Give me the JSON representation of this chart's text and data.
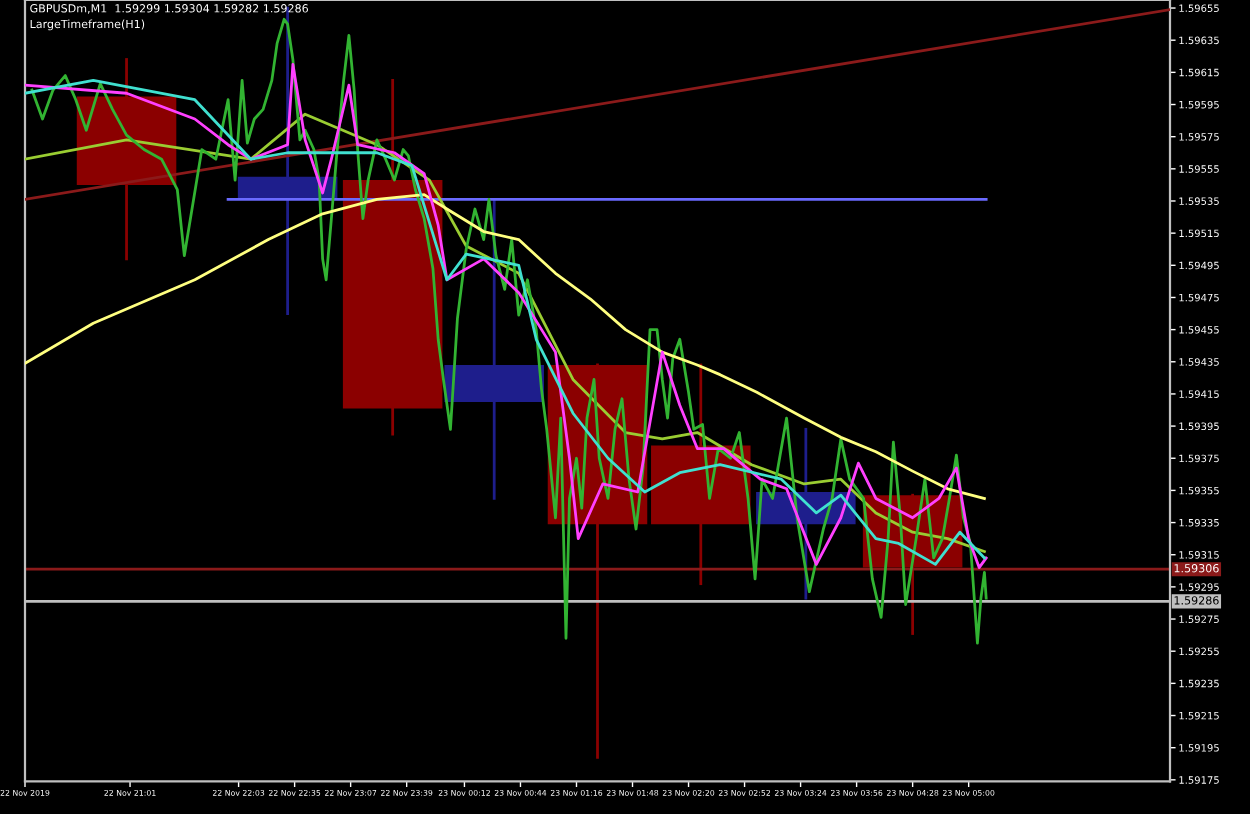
{
  "chart_data": {
    "type": "candlestick",
    "title": "GBPUSDm,M1  1.59299 1.59304 1.59282 1.59286",
    "subtitle": "LargeTimeframe(H1)",
    "xlim": [
      "2019-11-22T20:01",
      "2019-11-23T06:55"
    ],
    "ylim": [
      1.59174,
      1.5966
    ],
    "xticks": [
      {
        "value": "2019-11-22T20:01",
        "label": "22 Nov 2019"
      },
      {
        "value": "2019-11-22T21:01",
        "label": "22 Nov 21:01"
      },
      {
        "value": "2019-11-22T22:03",
        "label": "22 Nov 22:03"
      },
      {
        "value": "2019-11-22T22:35",
        "label": "22 Nov 22:35"
      },
      {
        "value": "2019-11-22T23:07",
        "label": "22 Nov 23:07"
      },
      {
        "value": "2019-11-22T23:39",
        "label": "22 Nov 23:39"
      },
      {
        "value": "2019-11-23T00:12",
        "label": "23 Nov 00:12"
      },
      {
        "value": "2019-11-23T00:44",
        "label": "23 Nov 00:44"
      },
      {
        "value": "2019-11-23T01:16",
        "label": "23 Nov 01:16"
      },
      {
        "value": "2019-11-23T01:48",
        "label": "23 Nov 01:48"
      },
      {
        "value": "2019-11-23T02:20",
        "label": "23 Nov 02:20"
      },
      {
        "value": "2019-11-23T02:52",
        "label": "23 Nov 02:52"
      },
      {
        "value": "2019-11-23T03:24",
        "label": "23 Nov 03:24"
      },
      {
        "value": "2019-11-23T03:56",
        "label": "23 Nov 03:56"
      },
      {
        "value": "2019-11-23T04:28",
        "label": "23 Nov 04:28"
      },
      {
        "value": "2019-11-23T05:00",
        "label": "23 Nov 05:00"
      }
    ],
    "yticks": [
      1.59655,
      1.59635,
      1.59615,
      1.59595,
      1.59575,
      1.59555,
      1.59535,
      1.59515,
      1.59495,
      1.59475,
      1.59455,
      1.59435,
      1.59415,
      1.59395,
      1.59375,
      1.59355,
      1.59335,
      1.59315,
      1.59295,
      1.59275,
      1.59255,
      1.59235,
      1.59215,
      1.59195,
      1.59175
    ],
    "grid": false,
    "legend": false,
    "marker": "none",
    "line_style": "solid",
    "ref_lines": [
      {
        "axis": "y",
        "value": 1.59306,
        "label": "1.59306",
        "color": "#8b1a1a"
      },
      {
        "axis": "y",
        "value": 1.59286,
        "label": "1.59286",
        "color": "#c0c0c0"
      }
    ],
    "series": [
      {
        "x": [
          "2019-11-22T20:59",
          "2019-11-22T22:31",
          "2019-11-22T23:31",
          "2019-11-23T00:29",
          "2019-11-23T01:28",
          "2019-11-23T02:27",
          "2019-11-23T03:27",
          "2019-11-23T04:28"
        ],
        "colors": [
          "#8b0000",
          "#1e1e8c",
          "#8b0000",
          "#1e1e8c",
          "#8b0000",
          "#8b0000",
          "#1e1e8c",
          "#8b0000"
        ],
        "ohlc": [
          [
            1.596,
            1.59623,
            1.59499,
            1.59545
          ],
          [
            1.59536,
            1.59655,
            1.59465,
            1.5955
          ],
          [
            1.59548,
            1.5961,
            1.5939,
            1.59406
          ],
          [
            1.5941,
            1.59536,
            1.5935,
            1.59433
          ],
          [
            1.59433,
            1.59433,
            1.59189,
            1.59334
          ],
          [
            1.59383,
            1.59433,
            1.59297,
            1.59334
          ],
          [
            1.59334,
            1.59393,
            1.59288,
            1.59354
          ],
          [
            1.59352,
            1.59352,
            1.59266,
            1.59307
          ]
        ]
      },
      {
        "type": "line",
        "color": "#8b1a1a",
        "x": [
          "2019-11-22T20:01",
          "2019-11-23T06:55"
        ],
        "values": [
          1.59536,
          1.59654
        ]
      },
      {
        "type": "line",
        "color": "#6a6aff",
        "x": [
          "2019-11-22T21:57",
          "2019-11-23T05:10"
        ],
        "values": [
          1.59536,
          1.59536
        ]
      },
      {
        "type": "line",
        "color": "#9acd32",
        "x": [
          "2019-11-22T20:01",
          "2019-11-22T20:59",
          "2019-11-22T22:10",
          "2019-11-22T22:41",
          "2019-11-22T23:22",
          "2019-11-22T23:52",
          "2019-11-23T00:13",
          "2019-11-23T00:43",
          "2019-11-23T01:14",
          "2019-11-23T01:44",
          "2019-11-23T02:05",
          "2019-11-23T02:25",
          "2019-11-23T02:56",
          "2019-11-23T03:26",
          "2019-11-23T03:47",
          "2019-11-23T04:07",
          "2019-11-23T04:28",
          "2019-11-23T04:48",
          "2019-11-23T05:09"
        ],
        "values": [
          1.59561,
          1.59573,
          1.59561,
          1.59589,
          1.5957,
          1.59548,
          1.59507,
          1.5949,
          1.59424,
          1.59391,
          1.59387,
          1.59391,
          1.59371,
          1.59359,
          1.59362,
          1.59341,
          1.59329,
          1.59325,
          1.59317
        ]
      },
      {
        "type": "line",
        "color": "#32b432",
        "x": [
          "2019-11-22T20:05",
          "2019-11-22T20:11",
          "2019-11-22T20:17",
          "2019-11-22T20:24",
          "2019-11-22T20:30",
          "2019-11-22T20:36",
          "2019-11-22T20:44",
          "2019-11-22T20:51",
          "2019-11-22T20:59",
          "2019-11-22T21:09",
          "2019-11-22T21:19",
          "2019-11-22T21:28",
          "2019-11-22T21:32",
          "2019-11-22T21:42",
          "2019-11-22T21:50",
          "2019-11-22T21:57",
          "2019-11-22T22:01",
          "2019-11-22T22:05",
          "2019-11-22T22:08",
          "2019-11-22T22:12",
          "2019-11-22T22:17",
          "2019-11-22T22:22",
          "2019-11-22T22:25",
          "2019-11-22T22:29",
          "2019-11-22T22:31",
          "2019-11-22T22:34",
          "2019-11-22T22:38",
          "2019-11-22T22:41",
          "2019-11-22T22:46",
          "2019-11-22T22:49",
          "2019-11-22T22:51",
          "2019-11-22T22:53",
          "2019-11-22T22:56",
          "2019-11-22T22:59",
          "2019-11-22T23:03",
          "2019-11-22T23:06",
          "2019-11-22T23:09",
          "2019-11-22T23:11",
          "2019-11-22T23:14",
          "2019-11-22T23:17",
          "2019-11-22T23:22",
          "2019-11-22T23:27",
          "2019-11-22T23:32",
          "2019-11-22T23:37",
          "2019-11-22T23:40",
          "2019-11-22T23:44",
          "2019-11-22T23:49",
          "2019-11-22T23:54",
          "2019-11-22T23:57",
          "2019-11-23T00:00",
          "2019-11-23T00:04",
          "2019-11-23T00:08",
          "2019-11-23T00:13",
          "2019-11-23T00:18",
          "2019-11-23T00:23",
          "2019-11-23T00:26",
          "2019-11-23T00:30",
          "2019-11-23T00:35",
          "2019-11-23T00:39",
          "2019-11-23T00:43",
          "2019-11-23T00:48",
          "2019-11-23T00:53",
          "2019-11-23T00:56",
          "2019-11-23T00:59",
          "2019-11-23T01:04",
          "2019-11-23T01:07",
          "2019-11-23T01:10",
          "2019-11-23T01:12",
          "2019-11-23T01:16",
          "2019-11-23T01:19",
          "2019-11-23T01:22",
          "2019-11-23T01:26",
          "2019-11-23T01:29",
          "2019-11-23T01:34",
          "2019-11-23T01:38",
          "2019-11-23T01:42",
          "2019-11-23T01:46",
          "2019-11-23T01:50",
          "2019-11-23T01:54",
          "2019-11-23T01:58",
          "2019-11-23T02:02",
          "2019-11-23T02:05",
          "2019-11-23T02:08",
          "2019-11-23T02:11",
          "2019-11-23T02:15",
          "2019-11-23T02:20",
          "2019-11-23T02:23",
          "2019-11-23T02:28",
          "2019-11-23T02:32",
          "2019-11-23T02:37",
          "2019-11-23T02:44",
          "2019-11-23T02:49",
          "2019-11-23T02:54",
          "2019-11-23T02:58",
          "2019-11-23T03:02",
          "2019-11-23T03:08",
          "2019-11-23T03:16",
          "2019-11-23T03:22",
          "2019-11-23T03:29",
          "2019-11-23T03:37",
          "2019-11-23T03:42",
          "2019-11-23T03:47",
          "2019-11-23T03:52",
          "2019-11-23T04:00",
          "2019-11-23T04:05",
          "2019-11-23T04:10",
          "2019-11-23T04:14",
          "2019-11-23T04:17",
          "2019-11-23T04:21",
          "2019-11-23T04:24",
          "2019-11-23T04:30",
          "2019-11-23T04:35",
          "2019-11-23T04:40",
          "2019-11-23T04:45",
          "2019-11-23T04:49",
          "2019-11-23T04:53",
          "2019-11-23T04:57",
          "2019-11-23T05:01",
          "2019-11-23T05:05",
          "2019-11-23T05:07",
          "2019-11-23T05:09",
          "2019-11-23T05:10"
        ],
        "values": [
          1.59604,
          1.59586,
          1.59604,
          1.59613,
          1.59598,
          1.59579,
          1.59608,
          1.59592,
          1.59576,
          1.59567,
          1.59561,
          1.59542,
          1.59501,
          1.59567,
          1.59561,
          1.59598,
          1.59548,
          1.5961,
          1.59571,
          1.59586,
          1.59592,
          1.5961,
          1.59633,
          1.59648,
          1.59645,
          1.59623,
          1.59573,
          1.59579,
          1.59567,
          1.59548,
          1.59499,
          1.59486,
          1.59524,
          1.59563,
          1.5961,
          1.59638,
          1.59604,
          1.59567,
          1.59524,
          1.59548,
          1.59573,
          1.59561,
          1.59548,
          1.59567,
          1.59563,
          1.59542,
          1.59524,
          1.59493,
          1.59449,
          1.59424,
          1.59393,
          1.59462,
          1.59505,
          1.5953,
          1.59511,
          1.59536,
          1.59501,
          1.5948,
          1.59511,
          1.59464,
          1.59486,
          1.59455,
          1.59418,
          1.59393,
          1.59338,
          1.594,
          1.59263,
          1.5935,
          1.59375,
          1.59344,
          1.594,
          1.59424,
          1.59375,
          1.5935,
          1.59393,
          1.59412,
          1.59362,
          1.59331,
          1.59369,
          1.59455,
          1.59455,
          1.59424,
          1.594,
          1.59437,
          1.59449,
          1.59416,
          1.59393,
          1.59396,
          1.5935,
          1.59381,
          1.59375,
          1.59391,
          1.5935,
          1.593,
          1.59362,
          1.5935,
          1.594,
          1.59338,
          1.59292,
          1.59331,
          1.5935,
          1.59387,
          1.59362,
          1.5935,
          1.593,
          1.59276,
          1.59325,
          1.59385,
          1.59338,
          1.59284,
          1.59325,
          1.59362,
          1.59313,
          1.59325,
          1.5935,
          1.59377,
          1.59338,
          1.59322,
          1.5926,
          1.59288,
          1.59304,
          1.59288
        ]
      },
      {
        "type": "line",
        "color": "#ffff80",
        "x": [
          "2019-11-22T20:01",
          "2019-11-22T20:40",
          "2019-11-22T21:38",
          "2019-11-22T22:20",
          "2019-11-22T22:51",
          "2019-11-22T23:22",
          "2019-11-22T23:49",
          "2019-11-23T00:02",
          "2019-11-23T00:23",
          "2019-11-23T00:43",
          "2019-11-23T01:04",
          "2019-11-23T01:24",
          "2019-11-23T01:44",
          "2019-11-23T02:05",
          "2019-11-23T02:25",
          "2019-11-23T02:38",
          "2019-11-23T02:59",
          "2019-11-23T03:26",
          "2019-11-23T03:47",
          "2019-11-23T04:07",
          "2019-11-23T04:28",
          "2019-11-23T04:48",
          "2019-11-23T05:09"
        ],
        "values": [
          1.59434,
          1.59459,
          1.59486,
          1.59511,
          1.59527,
          1.59536,
          1.59539,
          1.5953,
          1.59516,
          1.59511,
          1.5949,
          1.59474,
          1.59455,
          1.59441,
          1.59433,
          1.59427,
          1.59416,
          1.594,
          1.59388,
          1.59379,
          1.59367,
          1.59356,
          1.5935
        ]
      },
      {
        "type": "line",
        "color": "#ff40ff",
        "x": [
          "2019-11-22T20:01",
          "2019-11-22T20:59",
          "2019-11-22T21:38",
          "2019-11-22T21:57",
          "2019-11-22T22:10",
          "2019-11-22T22:31",
          "2019-11-22T22:34",
          "2019-11-22T22:41",
          "2019-11-22T22:51",
          "2019-11-22T22:56",
          "2019-11-22T23:06",
          "2019-11-22T23:11",
          "2019-11-22T23:32",
          "2019-11-22T23:49",
          "2019-11-22T23:57",
          "2019-11-23T00:02",
          "2019-11-23T00:23",
          "2019-11-23T00:43",
          "2019-11-23T01:04",
          "2019-11-23T01:12",
          "2019-11-23T01:17",
          "2019-11-23T01:31",
          "2019-11-23T01:51",
          "2019-11-23T02:05",
          "2019-11-23T02:15",
          "2019-11-23T02:25",
          "2019-11-23T02:40",
          "2019-11-23T03:01",
          "2019-11-23T03:16",
          "2019-11-23T03:33",
          "2019-11-23T03:47",
          "2019-11-23T03:57",
          "2019-11-23T04:07",
          "2019-11-23T04:28",
          "2019-11-23T04:43",
          "2019-11-23T04:53",
          "2019-11-23T05:00",
          "2019-11-23T05:06",
          "2019-11-23T05:10"
        ],
        "values": [
          1.59607,
          1.59602,
          1.59586,
          1.5957,
          1.59561,
          1.5957,
          1.5962,
          1.59573,
          1.5954,
          1.59561,
          1.59607,
          1.5957,
          1.59565,
          1.59552,
          1.5952,
          1.59486,
          1.59499,
          1.59478,
          1.59441,
          1.59375,
          1.59325,
          1.59359,
          1.59354,
          1.59441,
          1.59408,
          1.59381,
          1.59381,
          1.59362,
          1.59356,
          1.59309,
          1.59338,
          1.59372,
          1.5935,
          1.59338,
          1.5935,
          1.59369,
          1.59325,
          1.59307,
          1.59313
        ]
      },
      {
        "type": "line",
        "color": "#40e0d0",
        "x": [
          "2019-11-22T20:01",
          "2019-11-22T20:40",
          "2019-11-22T21:38",
          "2019-11-22T22:10",
          "2019-11-22T22:31",
          "2019-11-22T23:01",
          "2019-11-22T23:22",
          "2019-11-22T23:42",
          "2019-11-23T00:02",
          "2019-11-23T00:13",
          "2019-11-23T00:43",
          "2019-11-23T00:53",
          "2019-11-23T01:14",
          "2019-11-23T01:34",
          "2019-11-23T01:55",
          "2019-11-23T02:15",
          "2019-11-23T02:38",
          "2019-11-23T03:13",
          "2019-11-23T03:33",
          "2019-11-23T03:47",
          "2019-11-23T04:07",
          "2019-11-23T04:20",
          "2019-11-23T04:41",
          "2019-11-23T04:55",
          "2019-11-23T05:09"
        ],
        "values": [
          1.59602,
          1.5961,
          1.59598,
          1.59561,
          1.59565,
          1.59565,
          1.59565,
          1.59557,
          1.59486,
          1.59502,
          1.59495,
          1.59449,
          1.59403,
          1.59375,
          1.59354,
          1.59366,
          1.59371,
          1.59362,
          1.59341,
          1.59352,
          1.59325,
          1.59322,
          1.59309,
          1.59329,
          1.59313
        ]
      }
    ]
  }
}
